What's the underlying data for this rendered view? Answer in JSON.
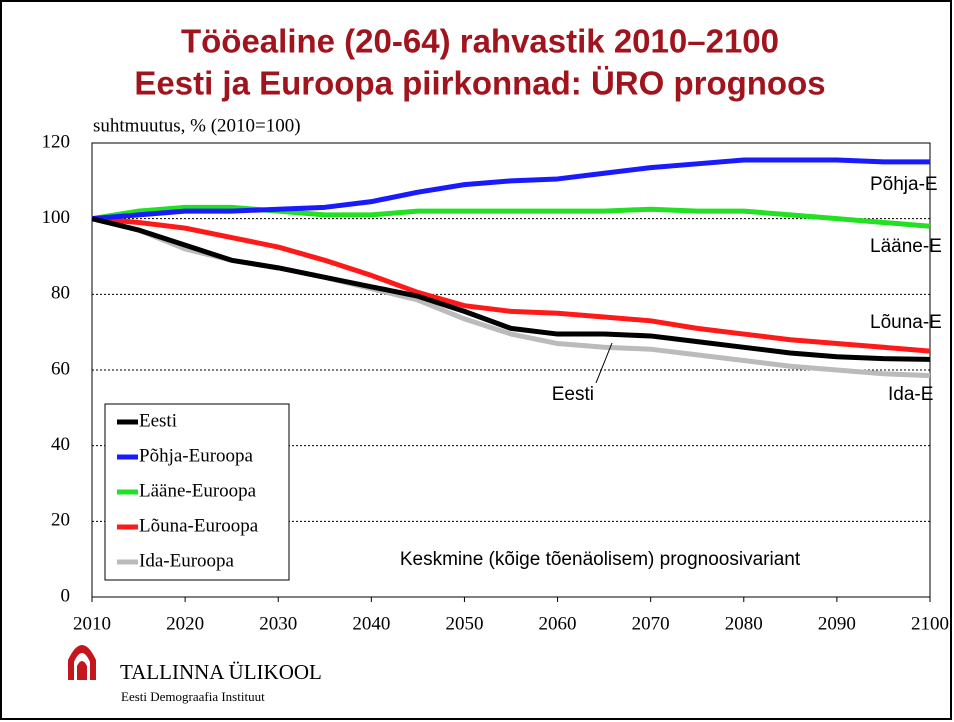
{
  "chart_data": {
    "type": "line",
    "title": [
      "Tööealine (20-64) rahvastik 2010–2100",
      "Eesti ja Euroopa piirkonnad: ÜRO prognoos"
    ],
    "ylabel": "suhtmuutus, %  (2010=100)",
    "x": [
      2010,
      2015,
      2020,
      2025,
      2030,
      2035,
      2040,
      2045,
      2050,
      2055,
      2060,
      2065,
      2070,
      2075,
      2080,
      2085,
      2090,
      2095,
      2100
    ],
    "series": [
      {
        "name": "Eesti",
        "color": "#000000",
        "values": [
          100,
          97,
          93,
          89,
          87,
          84.5,
          82,
          79.5,
          75.5,
          71,
          69.5,
          69.5,
          69,
          67.5,
          66,
          64.5,
          63.5,
          63,
          62.8
        ]
      },
      {
        "name": "Põhja-Euroopa",
        "color": "#1a1aff",
        "values": [
          100,
          101,
          102,
          102,
          102.5,
          103,
          104.5,
          107,
          109,
          110,
          110.5,
          112,
          113.5,
          114.5,
          115.5,
          115.5,
          115.5,
          115,
          115
        ]
      },
      {
        "name": "Lääne-Euroopa",
        "color": "#22e022",
        "values": [
          100,
          102,
          103,
          103,
          102,
          101,
          101,
          102,
          102,
          102,
          102,
          102,
          102.5,
          102,
          102,
          101,
          100,
          99,
          98
        ]
      },
      {
        "name": "Lõuna-Euroopa",
        "color": "#ff1a1a",
        "values": [
          100,
          99,
          97.5,
          95,
          92.5,
          89,
          85,
          80.5,
          77,
          75.5,
          75,
          74,
          73,
          71,
          69.5,
          68,
          67,
          66,
          65
        ]
      },
      {
        "name": "Ida-Euroopa",
        "color": "#bbbbbb",
        "values": [
          100,
          97,
          92,
          89,
          87,
          84.5,
          81.5,
          78.5,
          73.5,
          69.5,
          67,
          66,
          65.5,
          64,
          62.5,
          61,
          60,
          59,
          58.5
        ]
      }
    ],
    "xlim": [
      2010,
      2100
    ],
    "xticks": [
      2010,
      2020,
      2030,
      2040,
      2050,
      2060,
      2070,
      2080,
      2090,
      2100
    ],
    "ylim": [
      0,
      120
    ],
    "yticks": [
      0,
      20,
      40,
      60,
      80,
      100,
      120
    ],
    "grid": true,
    "legend": "lower left",
    "annotations": [
      "Põhja-E",
      "Lääne-E",
      "Lõuna-E",
      "Ida-E",
      "Eesti",
      "Keskmine (kõige tõenäolisem) prognoosivariant"
    ]
  },
  "footer": {
    "org": "TALLINNA ÜLIKOOL",
    "unit": "Eesti Demograafia Instituut"
  }
}
